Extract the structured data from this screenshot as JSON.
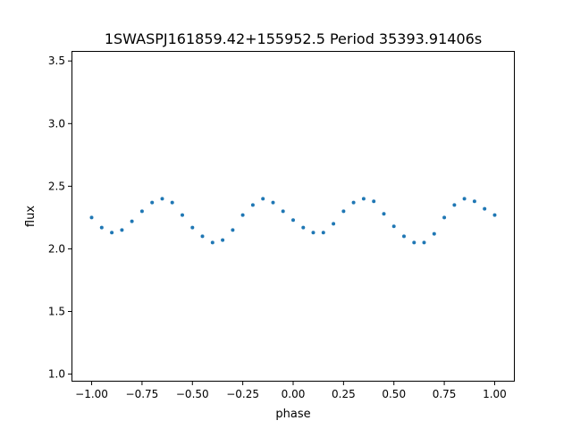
{
  "chart_data": {
    "type": "scatter",
    "title": "1SWASPJ161859.42+155952.5 Period 35393.91406s",
    "xlabel": "phase",
    "ylabel": "flux",
    "xlim": [
      -1.1,
      1.1
    ],
    "ylim": [
      0.94,
      3.58
    ],
    "x_ticks": [
      -1.0,
      -0.75,
      -0.5,
      -0.25,
      0.0,
      0.25,
      0.5,
      0.75,
      1.0
    ],
    "x_tick_labels": [
      "−1.00",
      "−0.75",
      "−0.50",
      "−0.25",
      "0.00",
      "0.25",
      "0.50",
      "0.75",
      "1.00"
    ],
    "y_ticks": [
      1.0,
      1.5,
      2.0,
      2.5,
      3.0,
      3.5
    ],
    "y_tick_labels": [
      "1.0",
      "1.5",
      "2.0",
      "2.5",
      "3.0",
      "3.5"
    ],
    "grid": false,
    "point_color": "#1f77b4",
    "series": [
      {
        "x": [
          -1.0,
          -0.95,
          -0.9,
          -0.85,
          -0.8,
          -0.75,
          -0.7,
          -0.65,
          -0.6,
          -0.55,
          -0.5,
          -0.45,
          -0.4,
          -0.35,
          -0.3,
          -0.25,
          -0.2,
          -0.15,
          -0.1,
          -0.05,
          0.0,
          0.05,
          0.1,
          0.15,
          0.2,
          0.25,
          0.3,
          0.35,
          0.4,
          0.45,
          0.5,
          0.55,
          0.6,
          0.65,
          0.7,
          0.75,
          0.8,
          0.85,
          0.9,
          0.95,
          1.0
        ],
        "y": [
          2.25,
          2.17,
          2.13,
          2.15,
          2.22,
          2.3,
          2.37,
          2.4,
          2.37,
          2.27,
          2.17,
          2.1,
          2.05,
          2.07,
          2.15,
          2.27,
          2.35,
          2.4,
          2.37,
          2.3,
          2.23,
          2.17,
          2.13,
          2.13,
          2.2,
          2.3,
          2.37,
          2.4,
          2.38,
          2.28,
          2.18,
          2.1,
          2.05,
          2.05,
          2.12,
          2.25,
          2.35,
          2.4,
          2.38,
          2.32,
          2.27
        ]
      }
    ]
  }
}
